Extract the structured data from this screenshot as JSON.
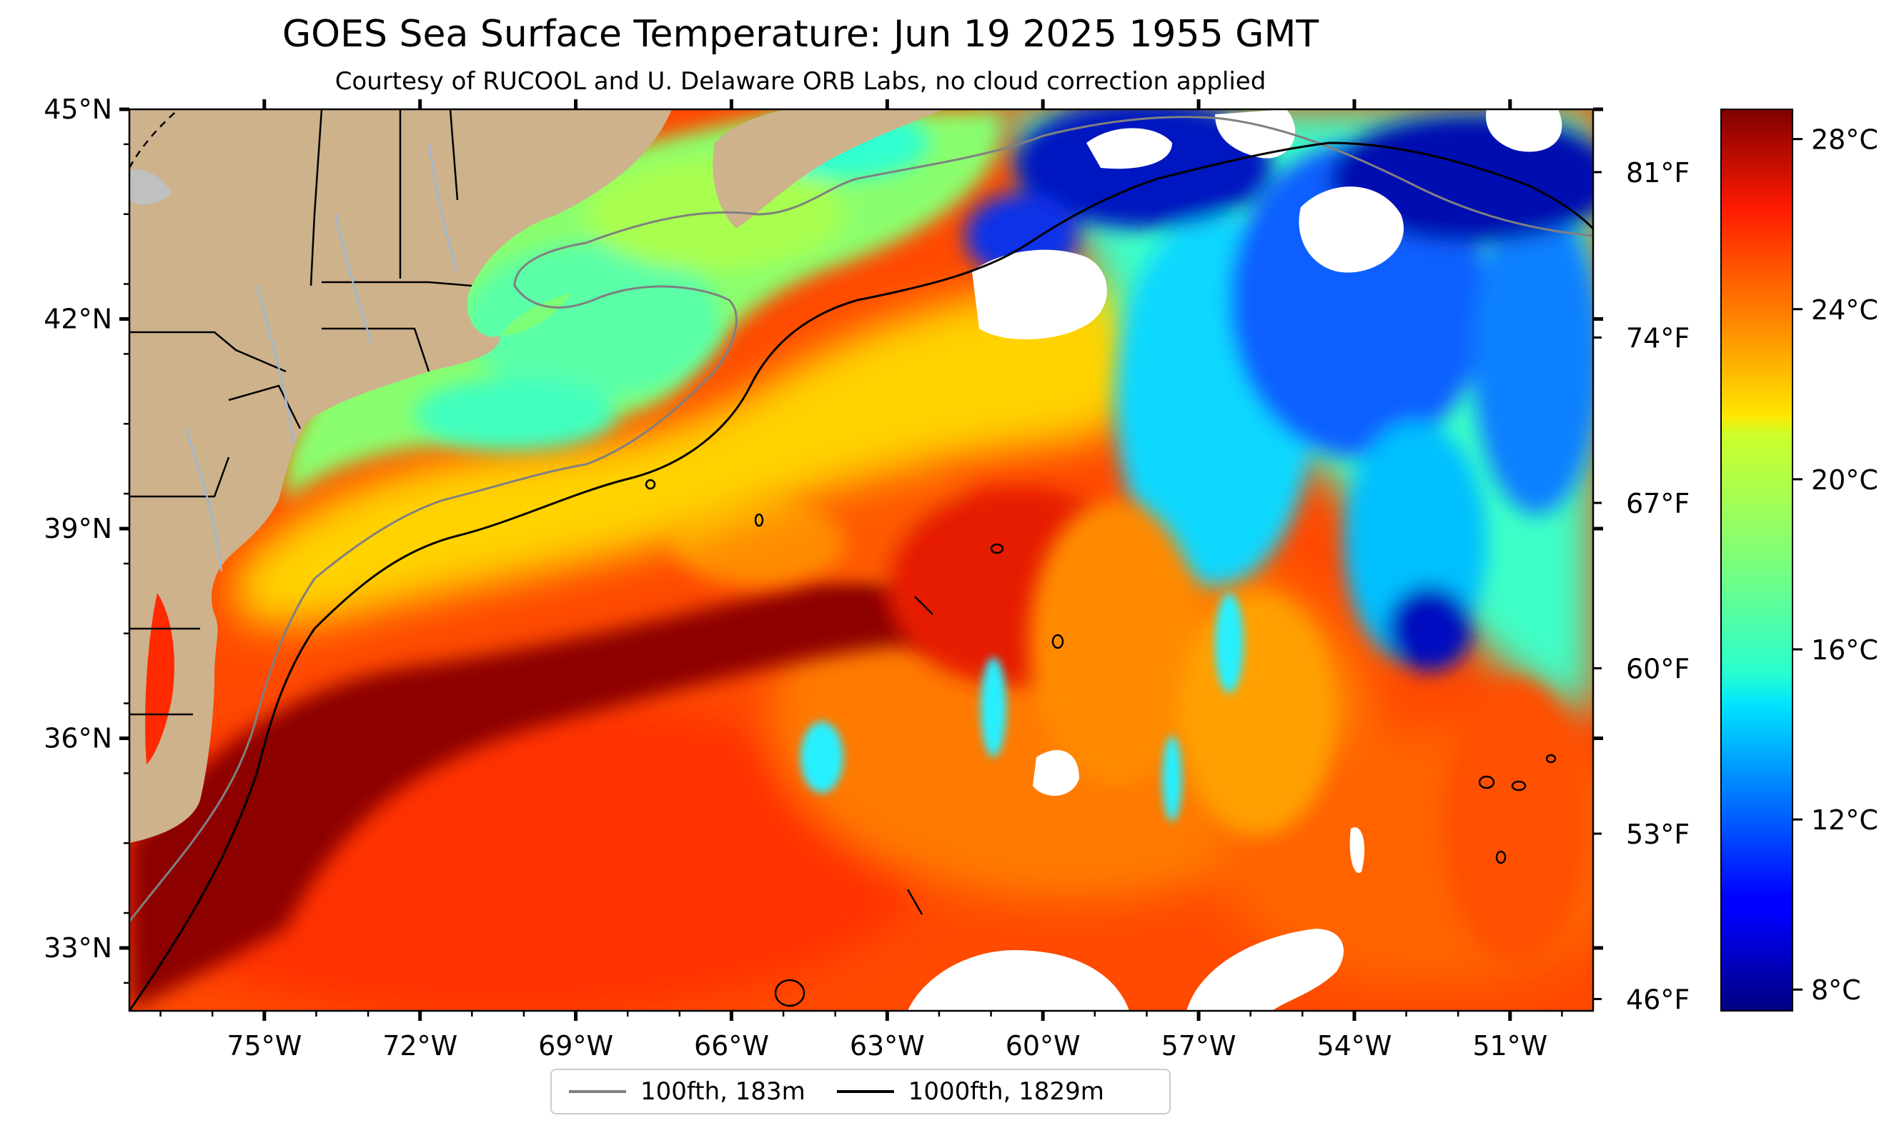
{
  "title": "GOES Sea Surface Temperature: Jun 19 2025 1955 GMT",
  "subtitle": "Courtesy of RUCOOL and U. Delaware ORB Labs, no cloud correction applied",
  "map": {
    "lon_range": [
      -77.6,
      -49.4
    ],
    "lat_range": [
      32.1,
      45.0
    ],
    "lat_ticks": [
      "45°N",
      "42°N",
      "39°N",
      "36°N",
      "33°N"
    ],
    "lat_tick_values": [
      45,
      42,
      39,
      36,
      33
    ],
    "lon_ticks": [
      "75°W",
      "72°W",
      "69°W",
      "66°W",
      "63°W",
      "60°W",
      "57°W",
      "54°W",
      "51°W"
    ],
    "lon_tick_values": [
      -75,
      -72,
      -69,
      -66,
      -63,
      -60,
      -57,
      -54,
      -51
    ],
    "land_color": "#cdb28c",
    "fahrenheit_ticks": [
      "81°F",
      "74°F",
      "67°F",
      "60°F",
      "53°F",
      "46°F"
    ],
    "fahrenheit_values": [
      81,
      74,
      67,
      60,
      53,
      46
    ]
  },
  "colorbar": {
    "range_c": [
      7.5,
      28.7
    ],
    "ticks": [
      "28°C",
      "24°C",
      "20°C",
      "16°C",
      "12°C",
      "8°C"
    ],
    "tick_values": [
      28,
      24,
      20,
      16,
      12,
      8
    ],
    "colormap": "jet"
  },
  "legend": {
    "items": [
      {
        "label": "100fth, 183m",
        "color": "#808080"
      },
      {
        "label": "1000fth, 1829m",
        "color": "#000000"
      }
    ]
  }
}
